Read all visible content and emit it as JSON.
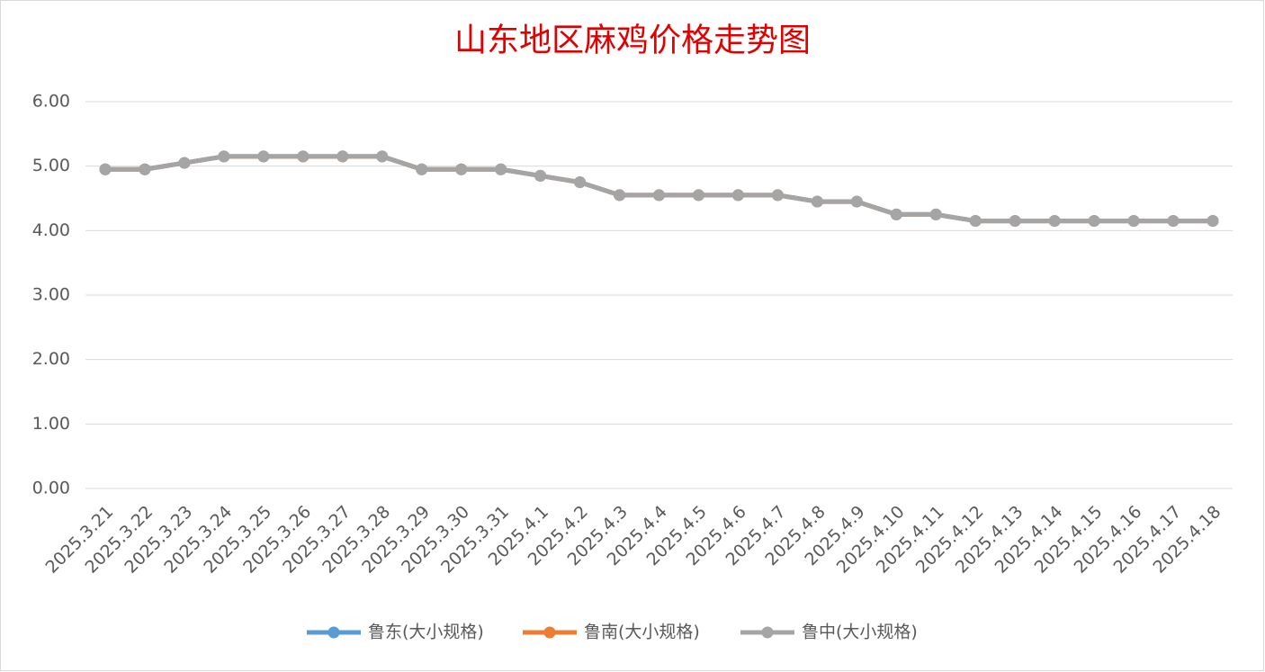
{
  "chart_data": {
    "type": "line",
    "title": "山东地区麻鸡价格走势图",
    "categories": [
      "2025.3.21",
      "2025.3.22",
      "2025.3.23",
      "2025.3.24",
      "2025.3.25",
      "2025.3.26",
      "2025.3.27",
      "2025.3.28",
      "2025.3.29",
      "2025.3.30",
      "2025.3.31",
      "2025.4.1",
      "2025.4.2",
      "2025.4.3",
      "2025.4.4",
      "2025.4.5",
      "2025.4.6",
      "2025.4.7",
      "2025.4.8",
      "2025.4.9",
      "2025.4.10",
      "2025.4.11",
      "2025.4.12",
      "2025.4.13",
      "2025.4.14",
      "2025.4.15",
      "2025.4.16",
      "2025.4.17",
      "2025.4.18"
    ],
    "series": [
      {
        "name": "鲁东(大小规格)",
        "color": "#5b9bd5",
        "values": [
          4.95,
          4.95,
          5.05,
          5.15,
          5.15,
          5.15,
          5.15,
          5.15,
          4.95,
          4.95,
          4.95,
          4.85,
          4.75,
          4.55,
          4.55,
          4.55,
          4.55,
          4.55,
          4.45,
          4.45,
          4.25,
          4.25,
          4.15,
          4.15,
          4.15,
          4.15,
          4.15,
          4.15,
          4.15
        ]
      },
      {
        "name": "鲁南(大小规格)",
        "color": "#ed7d31",
        "values": [
          4.95,
          4.95,
          5.05,
          5.15,
          5.15,
          5.15,
          5.15,
          5.15,
          4.95,
          4.95,
          4.95,
          4.85,
          4.75,
          4.55,
          4.55,
          4.55,
          4.55,
          4.55,
          4.45,
          4.45,
          4.25,
          4.25,
          4.15,
          4.15,
          4.15,
          4.15,
          4.15,
          4.15,
          4.15
        ]
      },
      {
        "name": "鲁中(大小规格)",
        "color": "#a5a5a5",
        "values": [
          4.95,
          4.95,
          5.05,
          5.15,
          5.15,
          5.15,
          5.15,
          5.15,
          4.95,
          4.95,
          4.95,
          4.85,
          4.75,
          4.55,
          4.55,
          4.55,
          4.55,
          4.55,
          4.45,
          4.45,
          4.25,
          4.25,
          4.15,
          4.15,
          4.15,
          4.15,
          4.15,
          4.15,
          4.15
        ]
      }
    ],
    "ylim": [
      0,
      6
    ],
    "yticks": [
      {
        "value": 0,
        "label": "0.00"
      },
      {
        "value": 1,
        "label": "1.00"
      },
      {
        "value": 2,
        "label": "2.00"
      },
      {
        "value": 3,
        "label": "3.00"
      },
      {
        "value": 4,
        "label": "4.00"
      },
      {
        "value": 5,
        "label": "5.00"
      },
      {
        "value": 6,
        "label": "6.00"
      }
    ],
    "grid": true,
    "legend": "bottom"
  }
}
